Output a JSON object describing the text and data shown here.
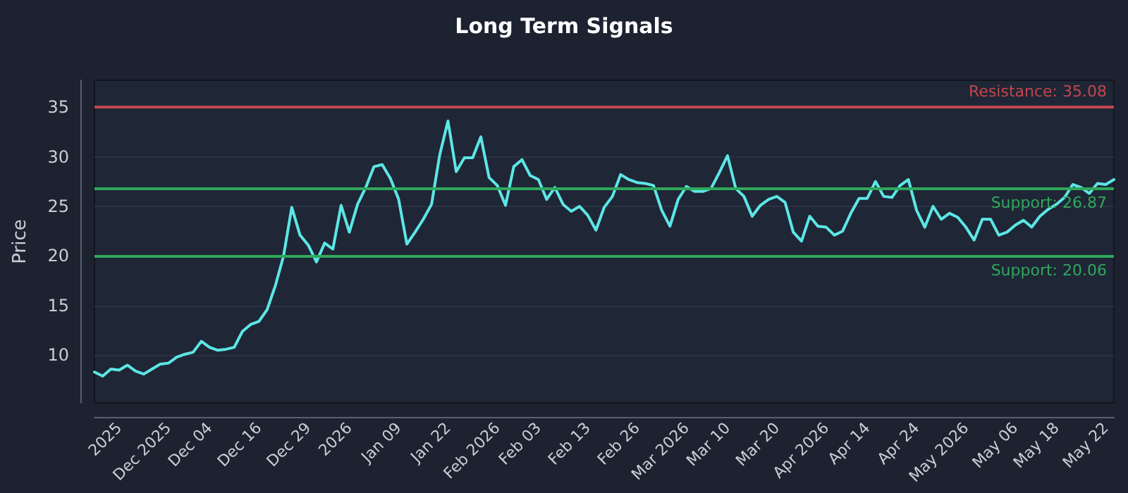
{
  "chart_data": {
    "type": "line",
    "title": "Long Term Signals",
    "ylabel": "Price",
    "categories": [
      null,
      null,
      null,
      "2025",
      null,
      null,
      null,
      null,
      null,
      "Dec 2025",
      null,
      null,
      null,
      null,
      "Dec 04",
      null,
      null,
      null,
      null,
      null,
      "Dec 16",
      null,
      null,
      null,
      null,
      null,
      "Dec 29",
      null,
      null,
      null,
      null,
      "2026",
      null,
      null,
      null,
      null,
      null,
      "Jan 09",
      null,
      null,
      null,
      null,
      null,
      "Jan 22",
      null,
      null,
      null,
      null,
      null,
      "Feb 2026",
      null,
      null,
      null,
      null,
      "Feb 03",
      null,
      null,
      null,
      null,
      null,
      "Feb 13",
      null,
      null,
      null,
      null,
      null,
      "Feb 26",
      null,
      null,
      null,
      null,
      null,
      "Mar 2026",
      null,
      null,
      null,
      null,
      "Mar 10",
      null,
      null,
      null,
      null,
      null,
      "Mar 20",
      null,
      null,
      null,
      null,
      null,
      "Apr 2026",
      null,
      null,
      null,
      null,
      "Apr 14",
      null,
      null,
      null,
      null,
      null,
      "Apr 24",
      null,
      null,
      null,
      null,
      null,
      "May 2026",
      null,
      null,
      null,
      null,
      null,
      "May 06",
      null,
      null,
      null,
      null,
      "May 18",
      null,
      null,
      null,
      null,
      null,
      "May 22",
      null
    ],
    "series": [
      {
        "color": "#5ce6e6",
        "values": [
          8.3,
          7.9,
          8.6,
          8.5,
          9.0,
          8.4,
          8.1,
          8.6,
          9.1,
          9.2,
          9.8,
          10.1,
          10.3,
          11.4,
          10.8,
          10.5,
          10.6,
          10.8,
          12.4,
          13.1,
          13.4,
          14.6,
          17.0,
          20.0,
          24.9,
          22.1,
          21.1,
          19.4,
          21.3,
          20.7,
          25.1,
          22.4,
          25.2,
          26.9,
          29.0,
          29.2,
          27.8,
          25.7,
          21.2,
          22.4,
          23.7,
          25.2,
          30.2,
          33.6,
          28.5,
          29.9,
          29.9,
          32.0,
          27.9,
          27.1,
          25.1,
          29.0,
          29.7,
          28.1,
          27.7,
          25.7,
          26.9,
          25.2,
          24.5,
          25.0,
          24.1,
          22.6,
          24.9,
          26.0,
          28.2,
          27.7,
          27.4,
          27.3,
          27.1,
          24.6,
          23.0,
          25.7,
          27.0,
          26.5,
          26.5,
          26.8,
          28.4,
          30.1,
          26.8,
          26.0,
          24.0,
          25.1,
          25.7,
          26.0,
          25.4,
          22.4,
          21.5,
          24.0,
          23.0,
          22.9,
          22.1,
          22.5,
          24.3,
          25.8,
          25.8,
          27.5,
          26.0,
          25.9,
          27.1,
          27.7,
          24.6,
          22.9,
          25.0,
          23.7,
          24.3,
          23.9,
          22.9,
          21.6,
          23.7,
          23.7,
          22.1,
          22.4,
          23.1,
          23.6,
          22.9,
          24.0,
          24.7,
          25.2,
          25.9,
          27.2,
          26.9,
          26.3,
          27.3,
          27.2,
          27.7
        ]
      }
    ],
    "ylim": [
      5.2,
      37.7
    ],
    "yticks": [
      10,
      15,
      20,
      25,
      30,
      35
    ],
    "grid": "y",
    "marker": "none",
    "line_style": "solid",
    "ref_lines": [
      {
        "axis": "y",
        "value": 35.08,
        "label": "Resistance: 35.08",
        "color": "#c1464e"
      },
      {
        "axis": "y",
        "value": 26.87,
        "label": "Support: 26.87",
        "color": "#2fa85c"
      },
      {
        "axis": "y",
        "value": 20.06,
        "label": "Support: 20.06",
        "color": "#2fa85c"
      }
    ]
  }
}
